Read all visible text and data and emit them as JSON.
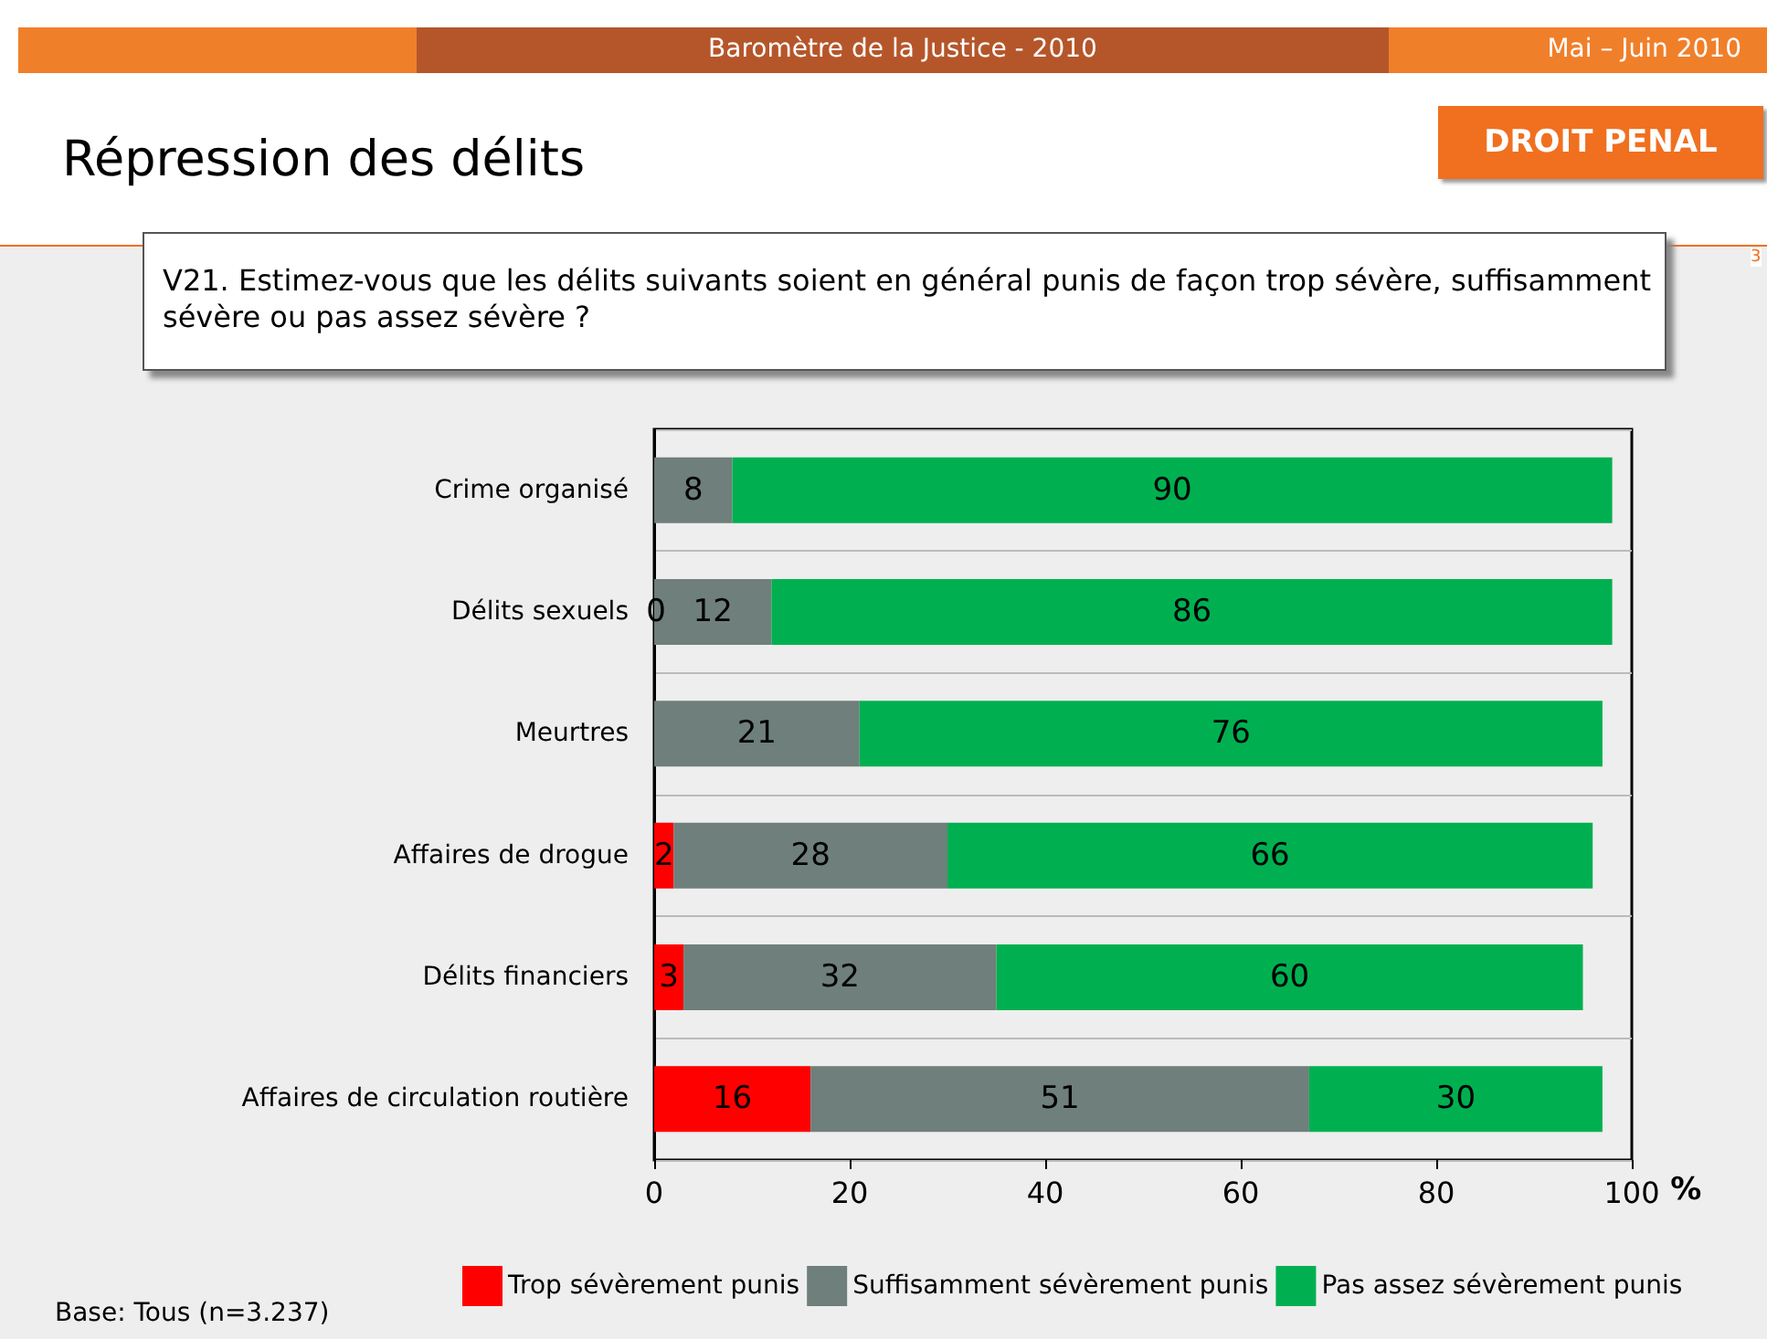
{
  "chart_data": {
    "type": "bar",
    "orientation": "horizontal",
    "stacked": true,
    "title": "Répression des délits",
    "subtitle": "V21. Estimez-vous que les délits suivants soient en général punis de façon trop sévère, suffisamment sévère ou pas assez sévère ?",
    "xlabel": "%",
    "annotations": [
      "Baromètre de la Justice - 2010",
      "Mai – Juin 2010",
      "DROIT PENAL",
      "Base: Tous (n=3.237)",
      "3"
    ],
    "categories": [
      "Crime organisé",
      "Délits sexuels",
      "Meurtres",
      "Affaires de drogue",
      "Délits financiers",
      "Affaires de circulation routière"
    ],
    "series": [
      {
        "name": "Trop sévèrement punis",
        "color": "#ff0000",
        "values": [
          null,
          0,
          null,
          2,
          3,
          16
        ],
        "value_labels": [
          null,
          "0",
          null,
          "2",
          "3",
          "16"
        ]
      },
      {
        "name": "Suffisamment sévèrement punis",
        "color": "#6f7f7b",
        "values": [
          8,
          12,
          21,
          28,
          32,
          51
        ],
        "value_labels": [
          "8",
          "12",
          "21",
          "28",
          "32",
          "51"
        ]
      },
      {
        "name": "Pas assez sévèrement punis",
        "color": "#00b050",
        "values": [
          90,
          86,
          76,
          66,
          60,
          30
        ],
        "value_labels": [
          "90",
          "86",
          "76",
          "66",
          "60",
          "30"
        ]
      }
    ],
    "xlim": [
      0,
      100
    ],
    "xticks": [
      0,
      20,
      40,
      60,
      80,
      100
    ],
    "grid": "y",
    "legend": "bottom"
  }
}
